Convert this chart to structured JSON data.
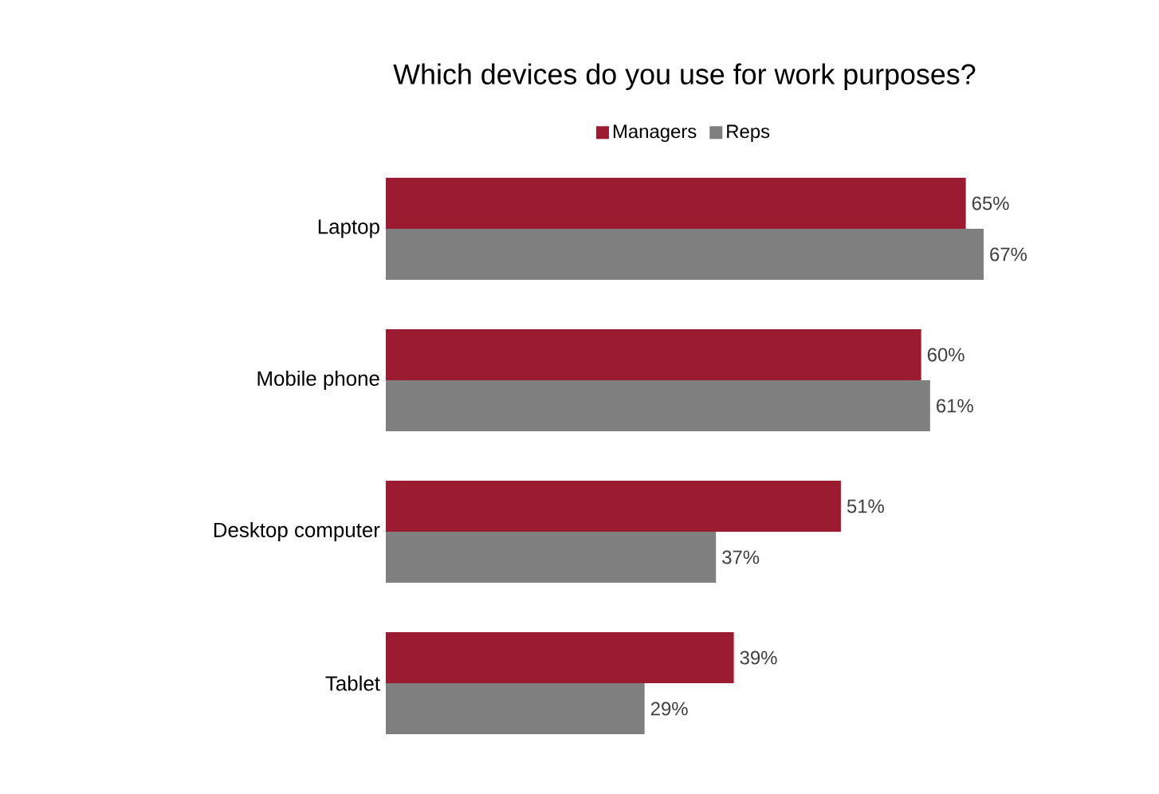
{
  "chart_data": {
    "type": "bar",
    "orientation": "horizontal",
    "title": "Which devices do you use for work purposes?",
    "categories": [
      "Laptop",
      "Mobile phone",
      "Desktop computer",
      "Tablet"
    ],
    "series": [
      {
        "name": "Managers",
        "color": "#9b1b30",
        "values": [
          65,
          60,
          51,
          39
        ],
        "value_labels": [
          "65%",
          "60%",
          "51%",
          "39%"
        ]
      },
      {
        "name": "Reps",
        "color": "#7f7f7f",
        "values": [
          67,
          61,
          37,
          29
        ],
        "value_labels": [
          "67%",
          "61%",
          "37%",
          "29%"
        ]
      }
    ],
    "legend": "top",
    "grid": false,
    "tick_labels": "y"
  }
}
